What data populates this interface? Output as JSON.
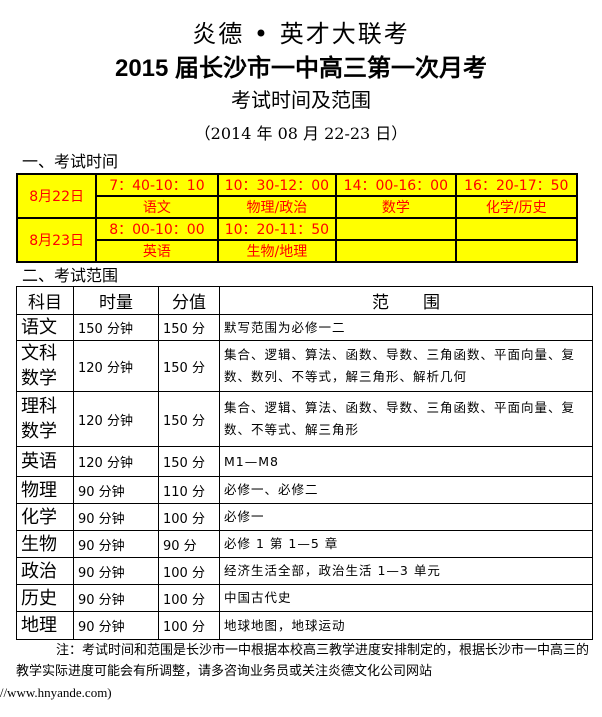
{
  "header": {
    "brand": "炎德 • 英才大联考",
    "title": "2015 届长沙市一中高三第一次月考",
    "subtitle": "考试时间及范围",
    "date": "（2014 年 08 月 22-23 日）"
  },
  "section1": {
    "heading": "一、考试时间",
    "days": [
      {
        "date": "8月22日",
        "times": [
          "7：40-10：10",
          "10：30-12：00",
          "14：00-16：00",
          "16：20-17：50"
        ],
        "subjects": [
          "语文",
          "物理/政治",
          "数学",
          "化学/历史"
        ]
      },
      {
        "date": "8月23日",
        "times": [
          "8：00-10：00",
          "10：20-11：50",
          "",
          ""
        ],
        "subjects": [
          "英语",
          "生物/地理",
          "",
          ""
        ]
      }
    ]
  },
  "section2": {
    "heading": "二、考试范围",
    "columns": [
      "科目",
      "时量",
      "分值",
      "范　　围"
    ],
    "rows": [
      {
        "subject": "语文",
        "time": "150 分钟",
        "score": "150 分",
        "scope": "默写范围为必修一二"
      },
      {
        "subject": "文科数学",
        "time": "120 分钟",
        "score": "150 分",
        "scope": "集合、逻辑、算法、函数、导数、三角函数、平面向量、复数、数列、不等式，解三角形、解析几何"
      },
      {
        "subject": "理科数学",
        "time": "120 分钟",
        "score": "150 分",
        "scope": "集合、逻辑、算法、函数、导数、三角函数、平面向量、复数、不等式、解三角形"
      },
      {
        "subject": "英语",
        "time": "120 分钟",
        "score": "150 分",
        "scope": "M1—M8"
      },
      {
        "subject": "物理",
        "time": "90 分钟",
        "score": "110 分",
        "scope": "必修一、必修二"
      },
      {
        "subject": "化学",
        "time": "90 分钟",
        "score": "100 分",
        "scope": "必修一"
      },
      {
        "subject": "生物",
        "time": "90 分钟",
        "score": "90 分",
        "scope": "必修 1 第 1—5 章"
      },
      {
        "subject": "政治",
        "time": "90 分钟",
        "score": "100 分",
        "scope": "经济生活全部，政治生活 1—3 单元"
      },
      {
        "subject": "历史",
        "time": "90 分钟",
        "score": "100 分",
        "scope": "中国古代史"
      },
      {
        "subject": "地理",
        "time": "90 分钟",
        "score": "100 分",
        "scope": "地球地图，地球运动"
      }
    ]
  },
  "note": {
    "text": "注：考试时间和范围是长沙市一中根据本校高三教学进度安排制定的，根据长沙市一中高三的教学实际进度可能会有所调整，请多咨询业务员或关注炎德文化公司网站",
    "url": "http://www.hnyande.com)"
  },
  "colors": {
    "schedule_bg": "#ffff00",
    "schedule_text": "#ff0000"
  }
}
